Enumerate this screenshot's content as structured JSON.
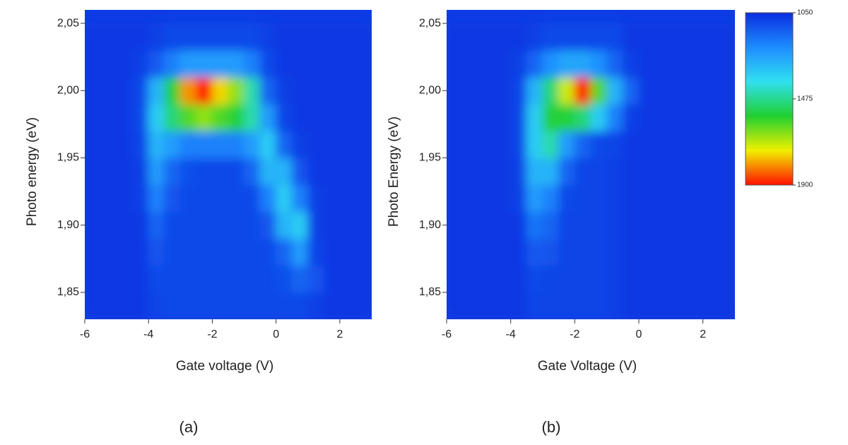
{
  "chart_data": [
    {
      "type": "heatmap",
      "caption": "(a)",
      "xlabel": "Gate voltage (V)",
      "ylabel": "Photo energy (eV)",
      "x": [
        -5.75,
        -5.25,
        -4.75,
        -4.25,
        -3.75,
        -3.25,
        -2.75,
        -2.25,
        -1.75,
        -1.25,
        -0.75,
        -0.25,
        0.25,
        0.75,
        1.25,
        1.75,
        2.25,
        2.75
      ],
      "y": [
        1.84,
        1.86,
        1.88,
        1.9,
        1.92,
        1.94,
        1.96,
        1.98,
        2.0,
        2.02,
        2.04
      ],
      "values": [
        [
          1070,
          1070,
          1070,
          1070,
          1090,
          1100,
          1100,
          1100,
          1100,
          1100,
          1100,
          1100,
          1100,
          1100,
          1080,
          1070,
          1070,
          1070
        ],
        [
          1070,
          1070,
          1070,
          1070,
          1100,
          1100,
          1100,
          1100,
          1100,
          1100,
          1100,
          1100,
          1110,
          1150,
          1120,
          1070,
          1070,
          1070
        ],
        [
          1070,
          1070,
          1070,
          1070,
          1120,
          1100,
          1100,
          1100,
          1100,
          1100,
          1100,
          1100,
          1150,
          1250,
          1090,
          1070,
          1070,
          1070
        ],
        [
          1070,
          1070,
          1070,
          1070,
          1150,
          1100,
          1100,
          1100,
          1100,
          1100,
          1100,
          1120,
          1300,
          1350,
          1080,
          1070,
          1070,
          1070
        ],
        [
          1070,
          1070,
          1070,
          1080,
          1200,
          1120,
          1100,
          1100,
          1100,
          1100,
          1100,
          1200,
          1350,
          1200,
          1080,
          1070,
          1070,
          1070
        ],
        [
          1070,
          1070,
          1070,
          1080,
          1250,
          1150,
          1110,
          1100,
          1100,
          1100,
          1150,
          1300,
          1300,
          1120,
          1070,
          1070,
          1070,
          1070
        ],
        [
          1070,
          1070,
          1070,
          1090,
          1300,
          1250,
          1200,
          1200,
          1200,
          1200,
          1250,
          1350,
          1150,
          1080,
          1070,
          1070,
          1070,
          1070
        ],
        [
          1070,
          1070,
          1070,
          1100,
          1350,
          1500,
          1600,
          1650,
          1600,
          1550,
          1450,
          1250,
          1090,
          1070,
          1070,
          1070,
          1070,
          1070
        ],
        [
          1070,
          1070,
          1070,
          1100,
          1300,
          1550,
          1800,
          1900,
          1750,
          1650,
          1450,
          1150,
          1080,
          1070,
          1070,
          1070,
          1070,
          1070
        ],
        [
          1070,
          1070,
          1070,
          1080,
          1130,
          1200,
          1250,
          1250,
          1250,
          1250,
          1200,
          1100,
          1070,
          1070,
          1070,
          1070,
          1070,
          1070
        ],
        [
          1070,
          1070,
          1070,
          1070,
          1080,
          1100,
          1100,
          1100,
          1100,
          1100,
          1100,
          1080,
          1070,
          1070,
          1070,
          1070,
          1070,
          1070
        ]
      ],
      "xlim": [
        -6,
        3
      ],
      "xticks": [
        -6,
        -4,
        -2,
        0,
        2
      ],
      "ylim": [
        1.83,
        2.06
      ],
      "yticks": [
        {
          "value": 1.85,
          "label": "1,85"
        },
        {
          "value": 1.9,
          "label": "1,90"
        },
        {
          "value": 1.95,
          "label": "1,95"
        },
        {
          "value": 2.0,
          "label": "2,00"
        },
        {
          "value": 2.05,
          "label": "2,05"
        }
      ],
      "clim": [
        1050,
        1900
      ],
      "colormap": [
        "#0a2ee0",
        "#1e8cff",
        "#30e0f0",
        "#20d030",
        "#f0f000",
        "#ff1000"
      ]
    },
    {
      "type": "heatmap",
      "caption": "(b)",
      "xlabel": "Gate Voltage (V)",
      "ylabel": "Photo Energy (eV)",
      "x": [
        -5.75,
        -5.25,
        -4.75,
        -4.25,
        -3.75,
        -3.25,
        -2.75,
        -2.25,
        -1.75,
        -1.25,
        -0.75,
        -0.25,
        0.25,
        0.75,
        1.25,
        1.75,
        2.25,
        2.75
      ],
      "y": [
        1.84,
        1.86,
        1.88,
        1.9,
        1.92,
        1.94,
        1.96,
        1.98,
        2.0,
        2.02,
        2.04
      ],
      "values": [
        [
          1070,
          1070,
          1070,
          1070,
          1070,
          1090,
          1090,
          1090,
          1090,
          1090,
          1080,
          1070,
          1070,
          1070,
          1070,
          1070,
          1070,
          1070
        ],
        [
          1070,
          1070,
          1070,
          1070,
          1070,
          1100,
          1090,
          1090,
          1090,
          1090,
          1080,
          1070,
          1070,
          1070,
          1070,
          1070,
          1070,
          1070
        ],
        [
          1070,
          1070,
          1070,
          1070,
          1070,
          1130,
          1120,
          1090,
          1090,
          1090,
          1080,
          1070,
          1070,
          1070,
          1070,
          1070,
          1070,
          1070
        ],
        [
          1070,
          1070,
          1070,
          1070,
          1070,
          1180,
          1150,
          1090,
          1090,
          1090,
          1080,
          1070,
          1070,
          1070,
          1070,
          1070,
          1070,
          1070
        ],
        [
          1070,
          1070,
          1070,
          1070,
          1080,
          1250,
          1200,
          1100,
          1090,
          1090,
          1080,
          1070,
          1070,
          1070,
          1070,
          1070,
          1070,
          1070
        ],
        [
          1070,
          1070,
          1070,
          1070,
          1080,
          1300,
          1300,
          1150,
          1090,
          1090,
          1080,
          1070,
          1070,
          1070,
          1070,
          1070,
          1070,
          1070
        ],
        [
          1070,
          1070,
          1070,
          1070,
          1090,
          1350,
          1450,
          1250,
          1150,
          1100,
          1090,
          1070,
          1070,
          1070,
          1070,
          1070,
          1070,
          1070
        ],
        [
          1070,
          1070,
          1070,
          1070,
          1090,
          1350,
          1550,
          1550,
          1500,
          1350,
          1200,
          1080,
          1070,
          1070,
          1070,
          1070,
          1070,
          1070
        ],
        [
          1070,
          1070,
          1070,
          1070,
          1090,
          1300,
          1500,
          1700,
          1900,
          1600,
          1300,
          1150,
          1070,
          1070,
          1070,
          1070,
          1070,
          1070
        ],
        [
          1070,
          1070,
          1070,
          1070,
          1080,
          1150,
          1230,
          1270,
          1270,
          1230,
          1150,
          1080,
          1070,
          1070,
          1070,
          1070,
          1070,
          1070
        ],
        [
          1070,
          1070,
          1070,
          1070,
          1070,
          1080,
          1100,
          1100,
          1100,
          1100,
          1100,
          1070,
          1070,
          1070,
          1070,
          1070,
          1070,
          1070
        ]
      ],
      "xlim": [
        -6,
        3
      ],
      "xticks": [
        -6,
        -4,
        -2,
        0,
        2
      ],
      "ylim": [
        1.83,
        2.06
      ],
      "yticks": [
        {
          "value": 1.85,
          "label": "1,85"
        },
        {
          "value": 1.9,
          "label": "1,90"
        },
        {
          "value": 1.95,
          "label": "1,95"
        },
        {
          "value": 2.0,
          "label": "2,00"
        },
        {
          "value": 2.05,
          "label": "2,05"
        }
      ],
      "clim": [
        1050,
        1900
      ],
      "cticks": [
        1050,
        1475,
        1900
      ],
      "colormap": [
        "#0a2ee0",
        "#1e8cff",
        "#30e0f0",
        "#20d030",
        "#f0f000",
        "#ff1000"
      ]
    }
  ]
}
